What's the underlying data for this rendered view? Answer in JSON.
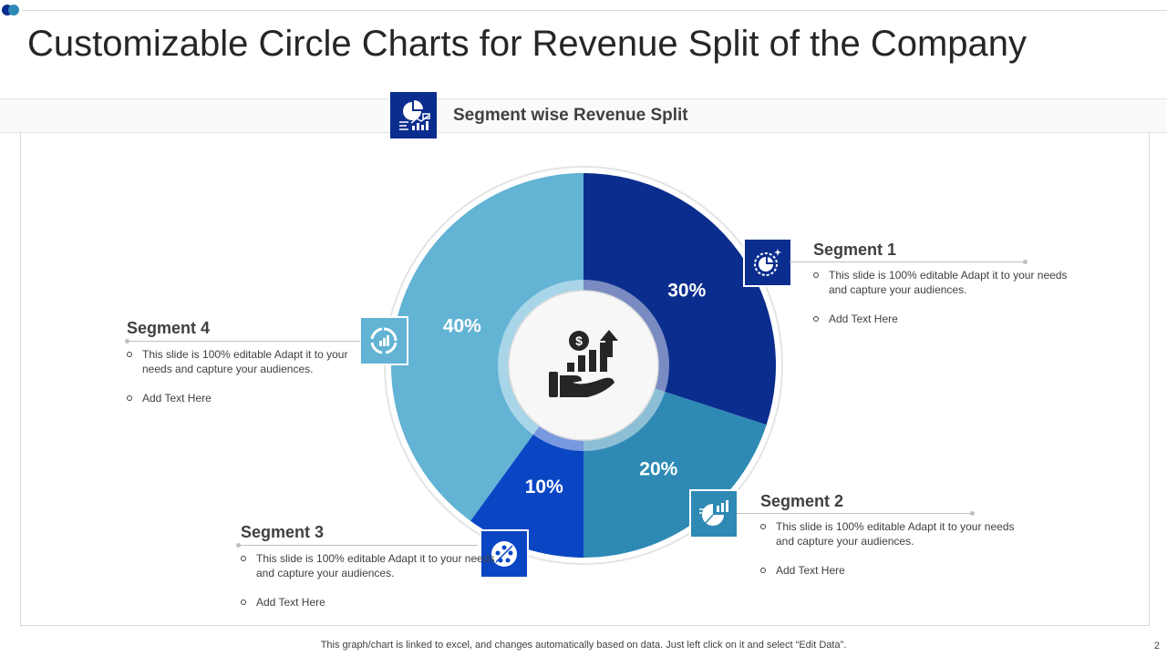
{
  "slide": {
    "title": "Customizable Circle Charts for Revenue Split of the Company",
    "footer": "This graph/chart is linked to excel,  and changes automatically based on data. Just left click on it and select “Edit Data”.",
    "page_number": "2",
    "accent_dots": [
      "#0b2d8e",
      "#2e8ab4"
    ]
  },
  "header": {
    "label": "Segment wise  Revenue Split",
    "icon": "pie-chart-growth-icon"
  },
  "center_icon": "money-growth-hand-icon",
  "chart_data": {
    "type": "pie",
    "style": "donut",
    "categories": [
      "Segment 1",
      "Segment 2",
      "Segment 3",
      "Segment 4"
    ],
    "values": [
      30,
      20,
      10,
      40
    ],
    "labels": [
      "30%",
      "20%",
      "10%",
      "40%"
    ],
    "colors": [
      "#0b2d8e",
      "#2e8ab4",
      "#0a46c4",
      "#62b3d4"
    ]
  },
  "segments": [
    {
      "title": "Segment 1",
      "icon": "pie-chart-sparkle-icon",
      "color": "#0b2d8e",
      "bullets": [
        "This slide is 100% editable Adapt it to your needs and capture your audiences.",
        "Add Text Here"
      ]
    },
    {
      "title": "Segment 2",
      "icon": "pie-bar-chart-icon",
      "color": "#2e8ab4",
      "bullets": [
        "This slide is 100% editable Adapt it to your needs and capture your audiences.",
        "Add Text Here"
      ]
    },
    {
      "title": "Segment 3",
      "icon": "team-network-icon",
      "color": "#0a46c4",
      "bullets": [
        "This slide is 100% editable Adapt it to your needs and capture your audiences.",
        "Add Text Here"
      ]
    },
    {
      "title": "Segment 4",
      "icon": "cycle-chart-icon",
      "color": "#62b3d4",
      "bullets": [
        "This slide is 100% editable Adapt it to your needs and capture your audiences.",
        "Add Text Here"
      ]
    }
  ]
}
